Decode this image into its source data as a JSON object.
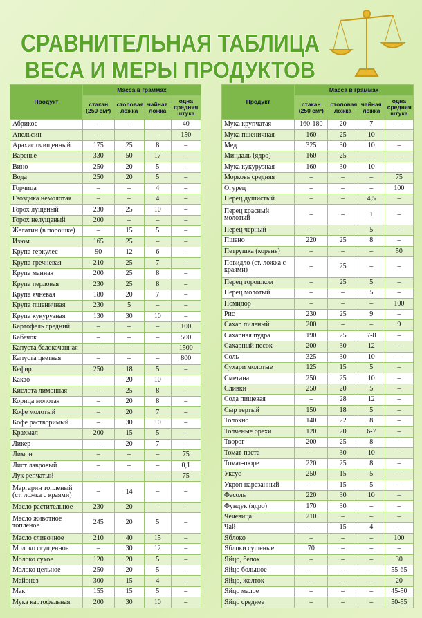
{
  "title": {
    "line1": "СРАВНИТЕЛЬНАЯ ТАБЛИЦА",
    "line2": "ВЕСА И МЕРЫ ПРОДУКТОВ"
  },
  "header": {
    "product": "Продукт",
    "mass": "Масса в граммах",
    "cols": [
      "стакан (250 см³)",
      "столовая ложка",
      "чайная ложка",
      "одна средняя штука"
    ]
  },
  "tables": [
    {
      "rows": [
        [
          "Абрикос",
          "–",
          "–",
          "–",
          "40"
        ],
        [
          "Апельсин",
          "–",
          "–",
          "–",
          "150"
        ],
        [
          "Арахис очищенный",
          "175",
          "25",
          "8",
          "–"
        ],
        [
          "Варенье",
          "330",
          "50",
          "17",
          "–"
        ],
        [
          "Вино",
          "250",
          "20",
          "5",
          "–"
        ],
        [
          "Вода",
          "250",
          "20",
          "5",
          "–"
        ],
        [
          "Горчица",
          "–",
          "–",
          "4",
          "–"
        ],
        [
          "Гвоздика немолотая",
          "–",
          "–",
          "4",
          "–"
        ],
        [
          "Горох лущеный",
          "230",
          "25",
          "10",
          "–"
        ],
        [
          "Горох нелущеный",
          "200",
          "–",
          "–",
          "–"
        ],
        [
          "Желатин (в порошке)",
          "–",
          "15",
          "5",
          "–"
        ],
        [
          "Изюм",
          "165",
          "25",
          "–",
          "–"
        ],
        [
          "Крупа геркулес",
          "90",
          "12",
          "6",
          "–"
        ],
        [
          "Крупа гречневая",
          "210",
          "25",
          "7",
          "–"
        ],
        [
          "Крупа манная",
          "200",
          "25",
          "8",
          "–"
        ],
        [
          "Крупа перловая",
          "230",
          "25",
          "8",
          "–"
        ],
        [
          "Крупа ячневая",
          "180",
          "20",
          "7",
          "–"
        ],
        [
          "Крупа пшеничная",
          "230",
          "5",
          "–",
          "–"
        ],
        [
          "Крупа кукурузная",
          "130",
          "30",
          "10",
          "–"
        ],
        [
          "Картофель средний",
          "–",
          "–",
          "–",
          "100"
        ],
        [
          "Кабачок",
          "–",
          "–",
          "–",
          "500"
        ],
        [
          "Капуста белокочанная",
          "–",
          "–",
          "–",
          "1500"
        ],
        [
          "Капуста цветная",
          "–",
          "–",
          "–",
          "800"
        ],
        [
          "Кефир",
          "250",
          "18",
          "5",
          "–"
        ],
        [
          "Какао",
          "–",
          "20",
          "10",
          "–"
        ],
        [
          "Кислота лимонная",
          "–",
          "25",
          "8",
          "–"
        ],
        [
          "Корица молотая",
          "–",
          "20",
          "8",
          "–"
        ],
        [
          "Кофе молотый",
          "–",
          "20",
          "7",
          "–"
        ],
        [
          "Кофе растворимый",
          "–",
          "30",
          "10",
          "–"
        ],
        [
          "Крахмал",
          "200",
          "15",
          "5",
          "–"
        ],
        [
          "Ликер",
          "–",
          "20",
          "7",
          "–"
        ],
        [
          "Лимон",
          "–",
          "–",
          "–",
          "75"
        ],
        [
          "Лист лавровый",
          "–",
          "–",
          "–",
          "0,1"
        ],
        [
          "Лук репчатый",
          "–",
          "–",
          "–",
          "75"
        ],
        [
          "Маргарин топленый (ст. ложка с краями)",
          "–",
          "14",
          "–",
          "–"
        ],
        [
          "Масло растительное",
          "230",
          "20",
          "–",
          "–"
        ],
        [
          "Масло животное топленое",
          "245",
          "20",
          "5",
          "–"
        ],
        [
          "Масло сливочное",
          "210",
          "40",
          "15",
          "–"
        ],
        [
          "Молоко сгущенное",
          "–",
          "30",
          "12",
          "–"
        ],
        [
          "Молоко сухое",
          "120",
          "20",
          "5",
          "–"
        ],
        [
          "Молоко цельное",
          "250",
          "20",
          "5",
          "–"
        ],
        [
          "Майонез",
          "300",
          "15",
          "4",
          "–"
        ],
        [
          "Мак",
          "155",
          "15",
          "5",
          "–"
        ],
        [
          "Мука картофельная",
          "200",
          "30",
          "10",
          "–"
        ]
      ]
    },
    {
      "rows": [
        [
          "Мука крупчатая",
          "160-180",
          "20",
          "7",
          "–"
        ],
        [
          "Мука пшеничная",
          "160",
          "25",
          "10",
          "–"
        ],
        [
          "Мед",
          "325",
          "30",
          "10",
          "–"
        ],
        [
          "Миндаль (ядро)",
          "160",
          "25",
          "–",
          "–"
        ],
        [
          "Мука кукурузная",
          "160",
          "30",
          "10",
          "–"
        ],
        [
          "Морковь средняя",
          "–",
          "–",
          "–",
          "75"
        ],
        [
          "Огурец",
          "–",
          "–",
          "–",
          "100"
        ],
        [
          "Перец душистый",
          "–",
          "–",
          "4,5",
          "–"
        ],
        [
          "Перец красный молотый",
          "–",
          "–",
          "1",
          "–"
        ],
        [
          "Перец черный",
          "–",
          "–",
          "5",
          "–"
        ],
        [
          "Пшено",
          "220",
          "25",
          "8",
          "–"
        ],
        [
          "Петрушка (корень)",
          "–",
          "–",
          "–",
          "50"
        ],
        [
          "Повидло (ст. ложка с краями)",
          "–",
          "25",
          "–",
          "–"
        ],
        [
          "Перец горошком",
          "–",
          "25",
          "5",
          "–"
        ],
        [
          "Перец молотый",
          "–",
          "–",
          "5",
          "–"
        ],
        [
          "Помидор",
          "–",
          "–",
          "–",
          "100"
        ],
        [
          "Рис",
          "230",
          "25",
          "9",
          "–"
        ],
        [
          "Сахар пиленый",
          "200",
          "–",
          "–",
          "9"
        ],
        [
          "Сахарная пудра",
          "190",
          "25",
          "7-8",
          "–"
        ],
        [
          "Сахарный песок",
          "200",
          "30",
          "12",
          "–"
        ],
        [
          "Соль",
          "325",
          "30",
          "10",
          "–"
        ],
        [
          "Сухари молотые",
          "125",
          "15",
          "5",
          "–"
        ],
        [
          "Сметана",
          "250",
          "25",
          "10",
          "–"
        ],
        [
          "Сливки",
          "250",
          "20",
          "5",
          "–"
        ],
        [
          "Сода пищевая",
          "–",
          "28",
          "12",
          "–"
        ],
        [
          "Сыр тертый",
          "150",
          "18",
          "5",
          "–"
        ],
        [
          "Толокно",
          "140",
          "22",
          "8",
          "–"
        ],
        [
          "Толченые орехи",
          "120",
          "20",
          "6-7",
          "–"
        ],
        [
          "Творог",
          "200",
          "25",
          "8",
          "–"
        ],
        [
          "Томат-паста",
          "–",
          "30",
          "10",
          "–"
        ],
        [
          "Томат-пюре",
          "220",
          "25",
          "8",
          "–"
        ],
        [
          "Уксус",
          "250",
          "15",
          "5",
          "–"
        ],
        [
          "Укроп нарезанный",
          "–",
          "15",
          "5",
          "–"
        ],
        [
          "Фасоль",
          "220",
          "30",
          "10",
          "–"
        ],
        [
          "Фундук (ядро)",
          "170",
          "30",
          "–",
          "–"
        ],
        [
          "Чечевица",
          "210",
          "–",
          "–",
          "–"
        ],
        [
          "Чай",
          "–",
          "15",
          "4",
          "–"
        ],
        [
          "Яблоко",
          "–",
          "–",
          "–",
          "100"
        ],
        [
          "Яблоки сушеные",
          "70",
          "–",
          "–",
          "–"
        ],
        [
          "Яйцо, белок",
          "–",
          "–",
          "–",
          "30"
        ],
        [
          "Яйцо большое",
          "–",
          "–",
          "–",
          "55-65"
        ],
        [
          "Яйцо, желток",
          "–",
          "–",
          "–",
          "20"
        ],
        [
          "Яйцо малое",
          "–",
          "–",
          "–",
          "45-50"
        ],
        [
          "Яйцо среднее",
          "–",
          "–",
          "–",
          "50-55"
        ]
      ]
    }
  ]
}
